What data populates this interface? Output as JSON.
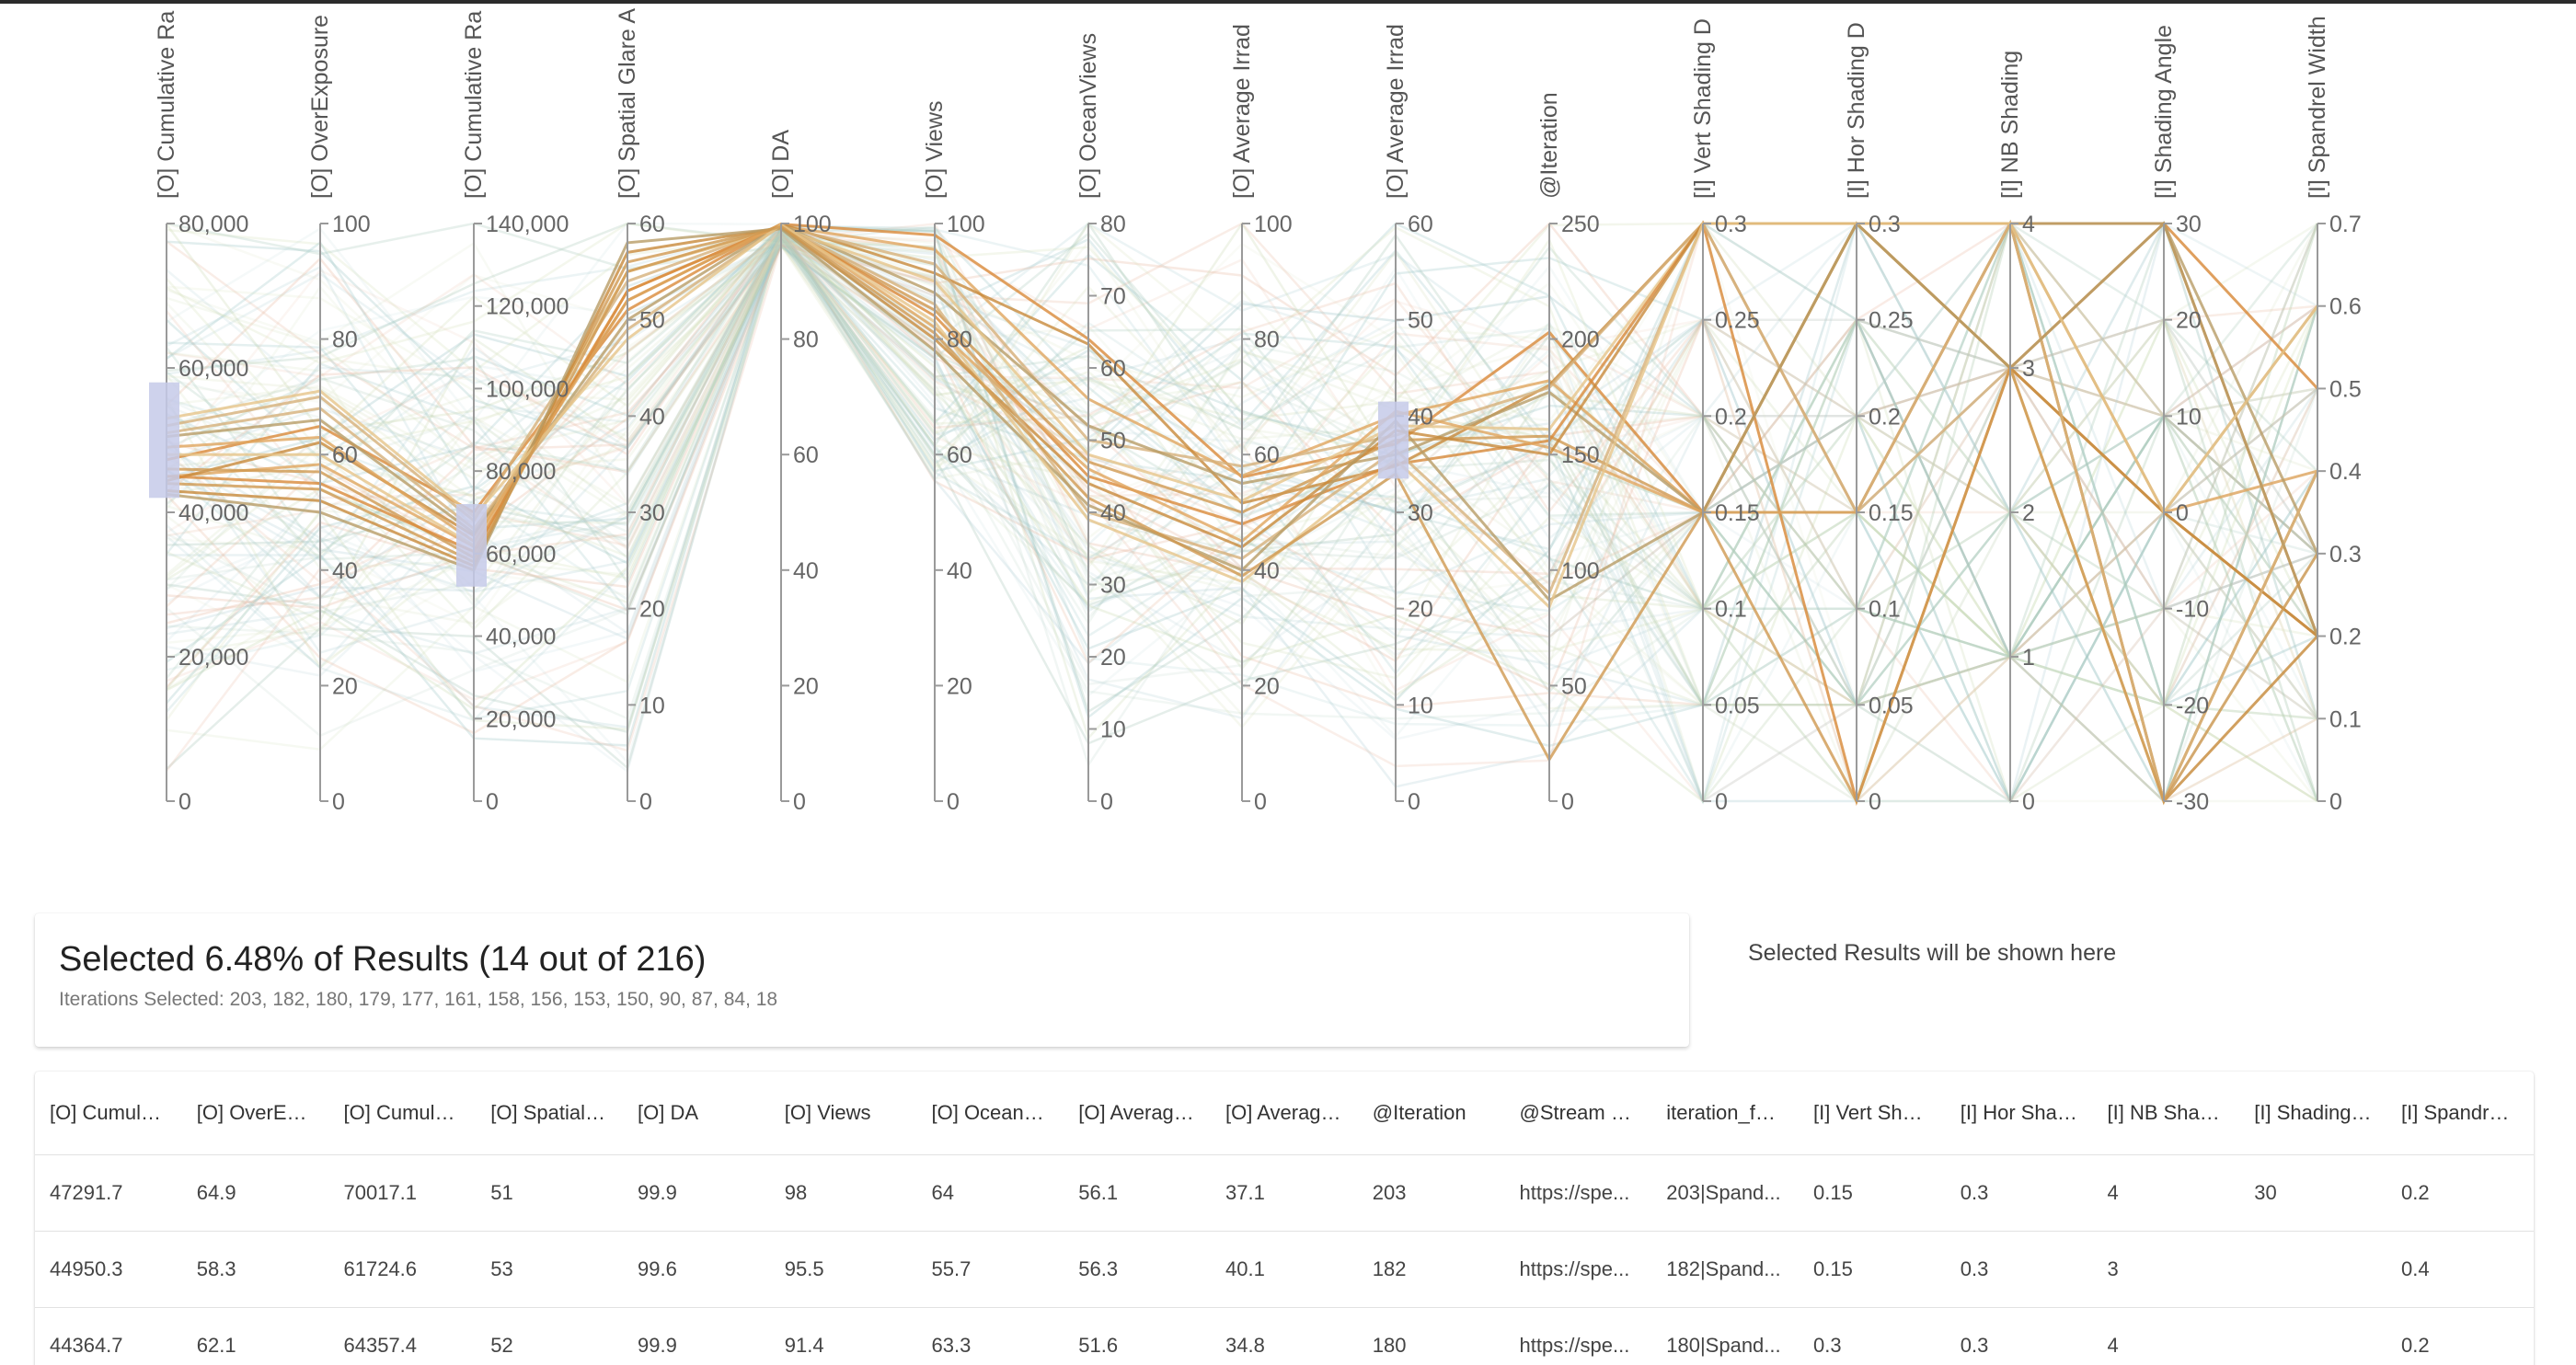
{
  "chart_data": {
    "type": "parallel_coordinates",
    "axes": [
      {
        "label": "[O] Cumulative Ra",
        "min": 0,
        "max": 80000,
        "ticks": [
          {
            "v": 0,
            "t": "0"
          },
          {
            "v": 20000,
            "t": "20,000"
          },
          {
            "v": 40000,
            "t": "40,000"
          },
          {
            "v": 60000,
            "t": "60,000"
          },
          {
            "v": 80000,
            "t": "80,000"
          }
        ],
        "brush": [
          42000,
          58000
        ]
      },
      {
        "label": "[O] OverExposure",
        "min": 0,
        "max": 100,
        "ticks": [
          {
            "v": 0,
            "t": "0"
          },
          {
            "v": 20,
            "t": "20"
          },
          {
            "v": 40,
            "t": "40"
          },
          {
            "v": 60,
            "t": "60"
          },
          {
            "v": 80,
            "t": "80"
          },
          {
            "v": 100,
            "t": "100"
          }
        ]
      },
      {
        "label": "[O] Cumulative Ra",
        "min": 0,
        "max": 140000,
        "ticks": [
          {
            "v": 0,
            "t": "0"
          },
          {
            "v": 20000,
            "t": "20,000"
          },
          {
            "v": 40000,
            "t": "40,000"
          },
          {
            "v": 60000,
            "t": "60,000"
          },
          {
            "v": 80000,
            "t": "80,000"
          },
          {
            "v": 100000,
            "t": "100,000"
          },
          {
            "v": 120000,
            "t": "120,000"
          },
          {
            "v": 140000,
            "t": "140,000"
          }
        ],
        "brush": [
          52000,
          72000
        ]
      },
      {
        "label": "[O] Spatial Glare A",
        "min": 0,
        "max": 60,
        "ticks": [
          {
            "v": 0,
            "t": "0"
          },
          {
            "v": 10,
            "t": "10"
          },
          {
            "v": 20,
            "t": "20"
          },
          {
            "v": 30,
            "t": "30"
          },
          {
            "v": 40,
            "t": "40"
          },
          {
            "v": 50,
            "t": "50"
          },
          {
            "v": 60,
            "t": "60"
          }
        ]
      },
      {
        "label": "[O] DA",
        "min": 0,
        "max": 100,
        "ticks": [
          {
            "v": 0,
            "t": "0"
          },
          {
            "v": 20,
            "t": "20"
          },
          {
            "v": 40,
            "t": "40"
          },
          {
            "v": 60,
            "t": "60"
          },
          {
            "v": 80,
            "t": "80"
          },
          {
            "v": 100,
            "t": "100"
          }
        ]
      },
      {
        "label": "[O] Views",
        "min": 0,
        "max": 100,
        "ticks": [
          {
            "v": 0,
            "t": "0"
          },
          {
            "v": 20,
            "t": "20"
          },
          {
            "v": 40,
            "t": "40"
          },
          {
            "v": 60,
            "t": "60"
          },
          {
            "v": 80,
            "t": "80"
          },
          {
            "v": 100,
            "t": "100"
          }
        ]
      },
      {
        "label": "[O] OceanViews",
        "min": 0,
        "max": 80,
        "ticks": [
          {
            "v": 0,
            "t": "0"
          },
          {
            "v": 10,
            "t": "10"
          },
          {
            "v": 20,
            "t": "20"
          },
          {
            "v": 30,
            "t": "30"
          },
          {
            "v": 40,
            "t": "40"
          },
          {
            "v": 50,
            "t": "50"
          },
          {
            "v": 60,
            "t": "60"
          },
          {
            "v": 70,
            "t": "70"
          },
          {
            "v": 80,
            "t": "80"
          }
        ]
      },
      {
        "label": "[O] Average Irrad",
        "min": 0,
        "max": 100,
        "ticks": [
          {
            "v": 0,
            "t": "0"
          },
          {
            "v": 20,
            "t": "20"
          },
          {
            "v": 40,
            "t": "40"
          },
          {
            "v": 60,
            "t": "60"
          },
          {
            "v": 80,
            "t": "80"
          },
          {
            "v": 100,
            "t": "100"
          }
        ]
      },
      {
        "label": "[O] Average Irrad",
        "min": 0,
        "max": 60,
        "ticks": [
          {
            "v": 0,
            "t": "0"
          },
          {
            "v": 10,
            "t": "10"
          },
          {
            "v": 20,
            "t": "20"
          },
          {
            "v": 30,
            "t": "30"
          },
          {
            "v": 40,
            "t": "40"
          },
          {
            "v": 50,
            "t": "50"
          },
          {
            "v": 60,
            "t": "60"
          }
        ],
        "brush": [
          33.5,
          41.5
        ]
      },
      {
        "label": "@Iteration",
        "min": 0,
        "max": 250,
        "ticks": [
          {
            "v": 0,
            "t": "0"
          },
          {
            "v": 50,
            "t": "50"
          },
          {
            "v": 100,
            "t": "100"
          },
          {
            "v": 150,
            "t": "150"
          },
          {
            "v": 200,
            "t": "200"
          },
          {
            "v": 250,
            "t": "250"
          }
        ]
      },
      {
        "label": "[I] Vert Shading D",
        "min": 0,
        "max": 0.3,
        "ticks": [
          {
            "v": 0,
            "t": "0"
          },
          {
            "v": 0.05,
            "t": "0.05"
          },
          {
            "v": 0.1,
            "t": "0.1"
          },
          {
            "v": 0.15,
            "t": "0.15"
          },
          {
            "v": 0.2,
            "t": "0.2"
          },
          {
            "v": 0.25,
            "t": "0.25"
          },
          {
            "v": 0.3,
            "t": "0.3"
          }
        ]
      },
      {
        "label": "[I] Hor Shading D",
        "min": 0,
        "max": 0.3,
        "ticks": [
          {
            "v": 0,
            "t": "0"
          },
          {
            "v": 0.05,
            "t": "0.05"
          },
          {
            "v": 0.1,
            "t": "0.1"
          },
          {
            "v": 0.15,
            "t": "0.15"
          },
          {
            "v": 0.2,
            "t": "0.2"
          },
          {
            "v": 0.25,
            "t": "0.25"
          },
          {
            "v": 0.3,
            "t": "0.3"
          }
        ]
      },
      {
        "label": "[I] NB Shading",
        "min": 0,
        "max": 4,
        "ticks": [
          {
            "v": 0,
            "t": "0"
          },
          {
            "v": 1,
            "t": "1"
          },
          {
            "v": 2,
            "t": "2"
          },
          {
            "v": 3,
            "t": "3"
          },
          {
            "v": 4,
            "t": "4"
          }
        ]
      },
      {
        "label": "[I] Shading Angle",
        "min": -30,
        "max": 30,
        "ticks": [
          {
            "v": -30,
            "t": "-30"
          },
          {
            "v": -20,
            "t": "-20"
          },
          {
            "v": -10,
            "t": "-10"
          },
          {
            "v": 0,
            "t": "0"
          },
          {
            "v": 10,
            "t": "10"
          },
          {
            "v": 20,
            "t": "20"
          },
          {
            "v": 30,
            "t": "30"
          }
        ]
      },
      {
        "label": "[I] Spandrel Width",
        "min": 0,
        "max": 0.7,
        "ticks": [
          {
            "v": 0,
            "t": "0"
          },
          {
            "v": 0.1,
            "t": "0.1"
          },
          {
            "v": 0.2,
            "t": "0.2"
          },
          {
            "v": 0.3,
            "t": "0.3"
          },
          {
            "v": 0.4,
            "t": "0.4"
          },
          {
            "v": 0.5,
            "t": "0.5"
          },
          {
            "v": 0.6,
            "t": "0.6"
          },
          {
            "v": 0.7,
            "t": "0.7"
          }
        ]
      }
    ],
    "selected_lines": [
      [
        47291.7,
        64.9,
        70017.1,
        51,
        99.9,
        98,
        64,
        56.1,
        37.1,
        203,
        0.15,
        0.3,
        4,
        30,
        0.2
      ],
      [
        44950.3,
        58.3,
        61724.6,
        53,
        99.6,
        95.5,
        55.7,
        56.3,
        40.1,
        182,
        0.15,
        0.3,
        3,
        0,
        0.4
      ],
      [
        44364.7,
        62.1,
        64357.4,
        52,
        99.9,
        91.4,
        63.3,
        51.6,
        34.8,
        180,
        0.3,
        0.3,
        4,
        -30,
        0.2
      ],
      [
        52000,
        70,
        68000,
        54,
        99.5,
        93,
        50,
        58,
        38,
        179,
        0.3,
        0.15,
        3,
        0,
        0.6
      ],
      [
        50500,
        66,
        65000,
        50,
        99.8,
        88,
        52,
        55,
        36,
        177,
        0.15,
        0.15,
        4,
        30,
        0.3
      ],
      [
        48000,
        60,
        62000,
        55,
        99.2,
        90,
        48,
        52,
        39,
        161,
        0.3,
        0.3,
        3,
        -30,
        0.4
      ],
      [
        46000,
        57,
        59000,
        56,
        99.4,
        85,
        47,
        50,
        37.5,
        158,
        0.15,
        0.3,
        4,
        0,
        0.2
      ],
      [
        45000,
        55,
        60500,
        53,
        99.7,
        84,
        45,
        48,
        35,
        156,
        0.3,
        0,
        3,
        30,
        0.5
      ],
      [
        49000,
        63,
        63000,
        52,
        99.9,
        82,
        46,
        45,
        40.5,
        153,
        0.15,
        0.15,
        4,
        -30,
        0.4
      ],
      [
        43000,
        52,
        57000,
        57,
        99.3,
        80,
        44,
        44,
        38.5,
        150,
        0.3,
        0.3,
        3,
        0,
        0.2
      ],
      [
        51000,
        68,
        66000,
        49,
        99.6,
        86,
        40,
        42,
        36.5,
        90,
        0.3,
        0.15,
        4,
        -30,
        0.4
      ],
      [
        42500,
        50,
        56000,
        58,
        99.1,
        78,
        41,
        40,
        39.5,
        87,
        0.15,
        0.3,
        3,
        30,
        0.2
      ],
      [
        53000,
        71,
        69000,
        48,
        99.8,
        83,
        39,
        38,
        35.5,
        84,
        0.3,
        0.3,
        4,
        0,
        0.6
      ],
      [
        44000,
        54,
        58000,
        55,
        99.5,
        81,
        42,
        39,
        34,
        18,
        0.15,
        0,
        3,
        -30,
        0.3
      ]
    ],
    "colors": {
      "selected": [
        "#d9893a",
        "#e0a55e",
        "#c88a3b",
        "#d6b07a",
        "#b89c66",
        "#e6c48a",
        "#cf9850"
      ],
      "background": [
        "#9cc4c6",
        "#a8c8b8",
        "#c8d9b0",
        "#e8b8a0",
        "#b7d3d8",
        "#d8e2c0"
      ],
      "brush": "#c5cae9"
    }
  },
  "summary": {
    "title": "Selected 6.48% of Results (14 out of 216)",
    "iterations": "Iterations Selected: 203, 182, 180, 179, 177, 161, 158, 156, 153, 150, 90, 87, 84, 18"
  },
  "placeholder": "Selected Results will be shown here",
  "table": {
    "columns": [
      "[O] Cumulati...",
      "[O] OverExp...",
      "[O] Cumulati...",
      "[O] Spatial G...",
      "[O] DA",
      "[O] Views",
      "[O] OceanVi...",
      "[O] Average I...",
      "[O] Average I...",
      "@Iteration",
      "@Stream Da...",
      "iteration_full...",
      "[I] Vert Shadi...",
      "[I] Hor Shadi...",
      "[I] NB Shading",
      "[I] Shading A...",
      "[I] Spandrel ..."
    ],
    "rows": [
      [
        "47291.7",
        "64.9",
        "70017.1",
        "51",
        "99.9",
        "98",
        "64",
        "56.1",
        "37.1",
        "203",
        "https://spe...",
        "203|Spand...",
        "0.15",
        "0.3",
        "4",
        "30",
        "0.2"
      ],
      [
        "44950.3",
        "58.3",
        "61724.6",
        "53",
        "99.6",
        "95.5",
        "55.7",
        "56.3",
        "40.1",
        "182",
        "https://spe...",
        "182|Spand...",
        "0.15",
        "0.3",
        "3",
        "",
        "0.4"
      ],
      [
        "44364.7",
        "62.1",
        "64357.4",
        "52",
        "99.9",
        "91.4",
        "63.3",
        "51.6",
        "34.8",
        "180",
        "https://spe...",
        "180|Spand...",
        "0.3",
        "0.3",
        "4",
        "",
        "0.2"
      ]
    ]
  }
}
